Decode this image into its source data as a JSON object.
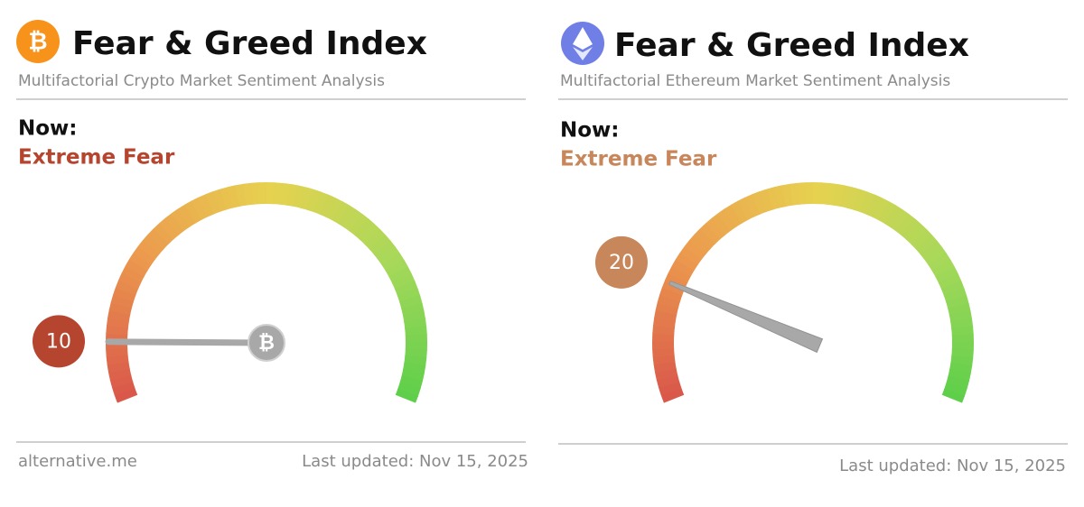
{
  "chart_data": [
    {
      "type": "gauge",
      "logo": "₿",
      "title": "Fear & Greed Index",
      "subtitle": "Multifactorial Crypto Market Sentiment Analysis",
      "now_label": "Now:",
      "status": "Extreme Fear",
      "value": 10,
      "ylim": [
        0,
        100
      ],
      "color": "#b5452e",
      "source": "alternative.me",
      "updated": "Last updated: Nov 15, 2025"
    },
    {
      "type": "gauge",
      "title": "Fear & Greed Index",
      "subtitle": "Multifactorial Ethereum Market Sentiment Analysis",
      "now_label": "Now:",
      "status": "Extreme Fear",
      "value": 20,
      "ylim": [
        0,
        100
      ],
      "color": "#c8875a",
      "updated": "Last updated: Nov 15, 2025"
    }
  ]
}
